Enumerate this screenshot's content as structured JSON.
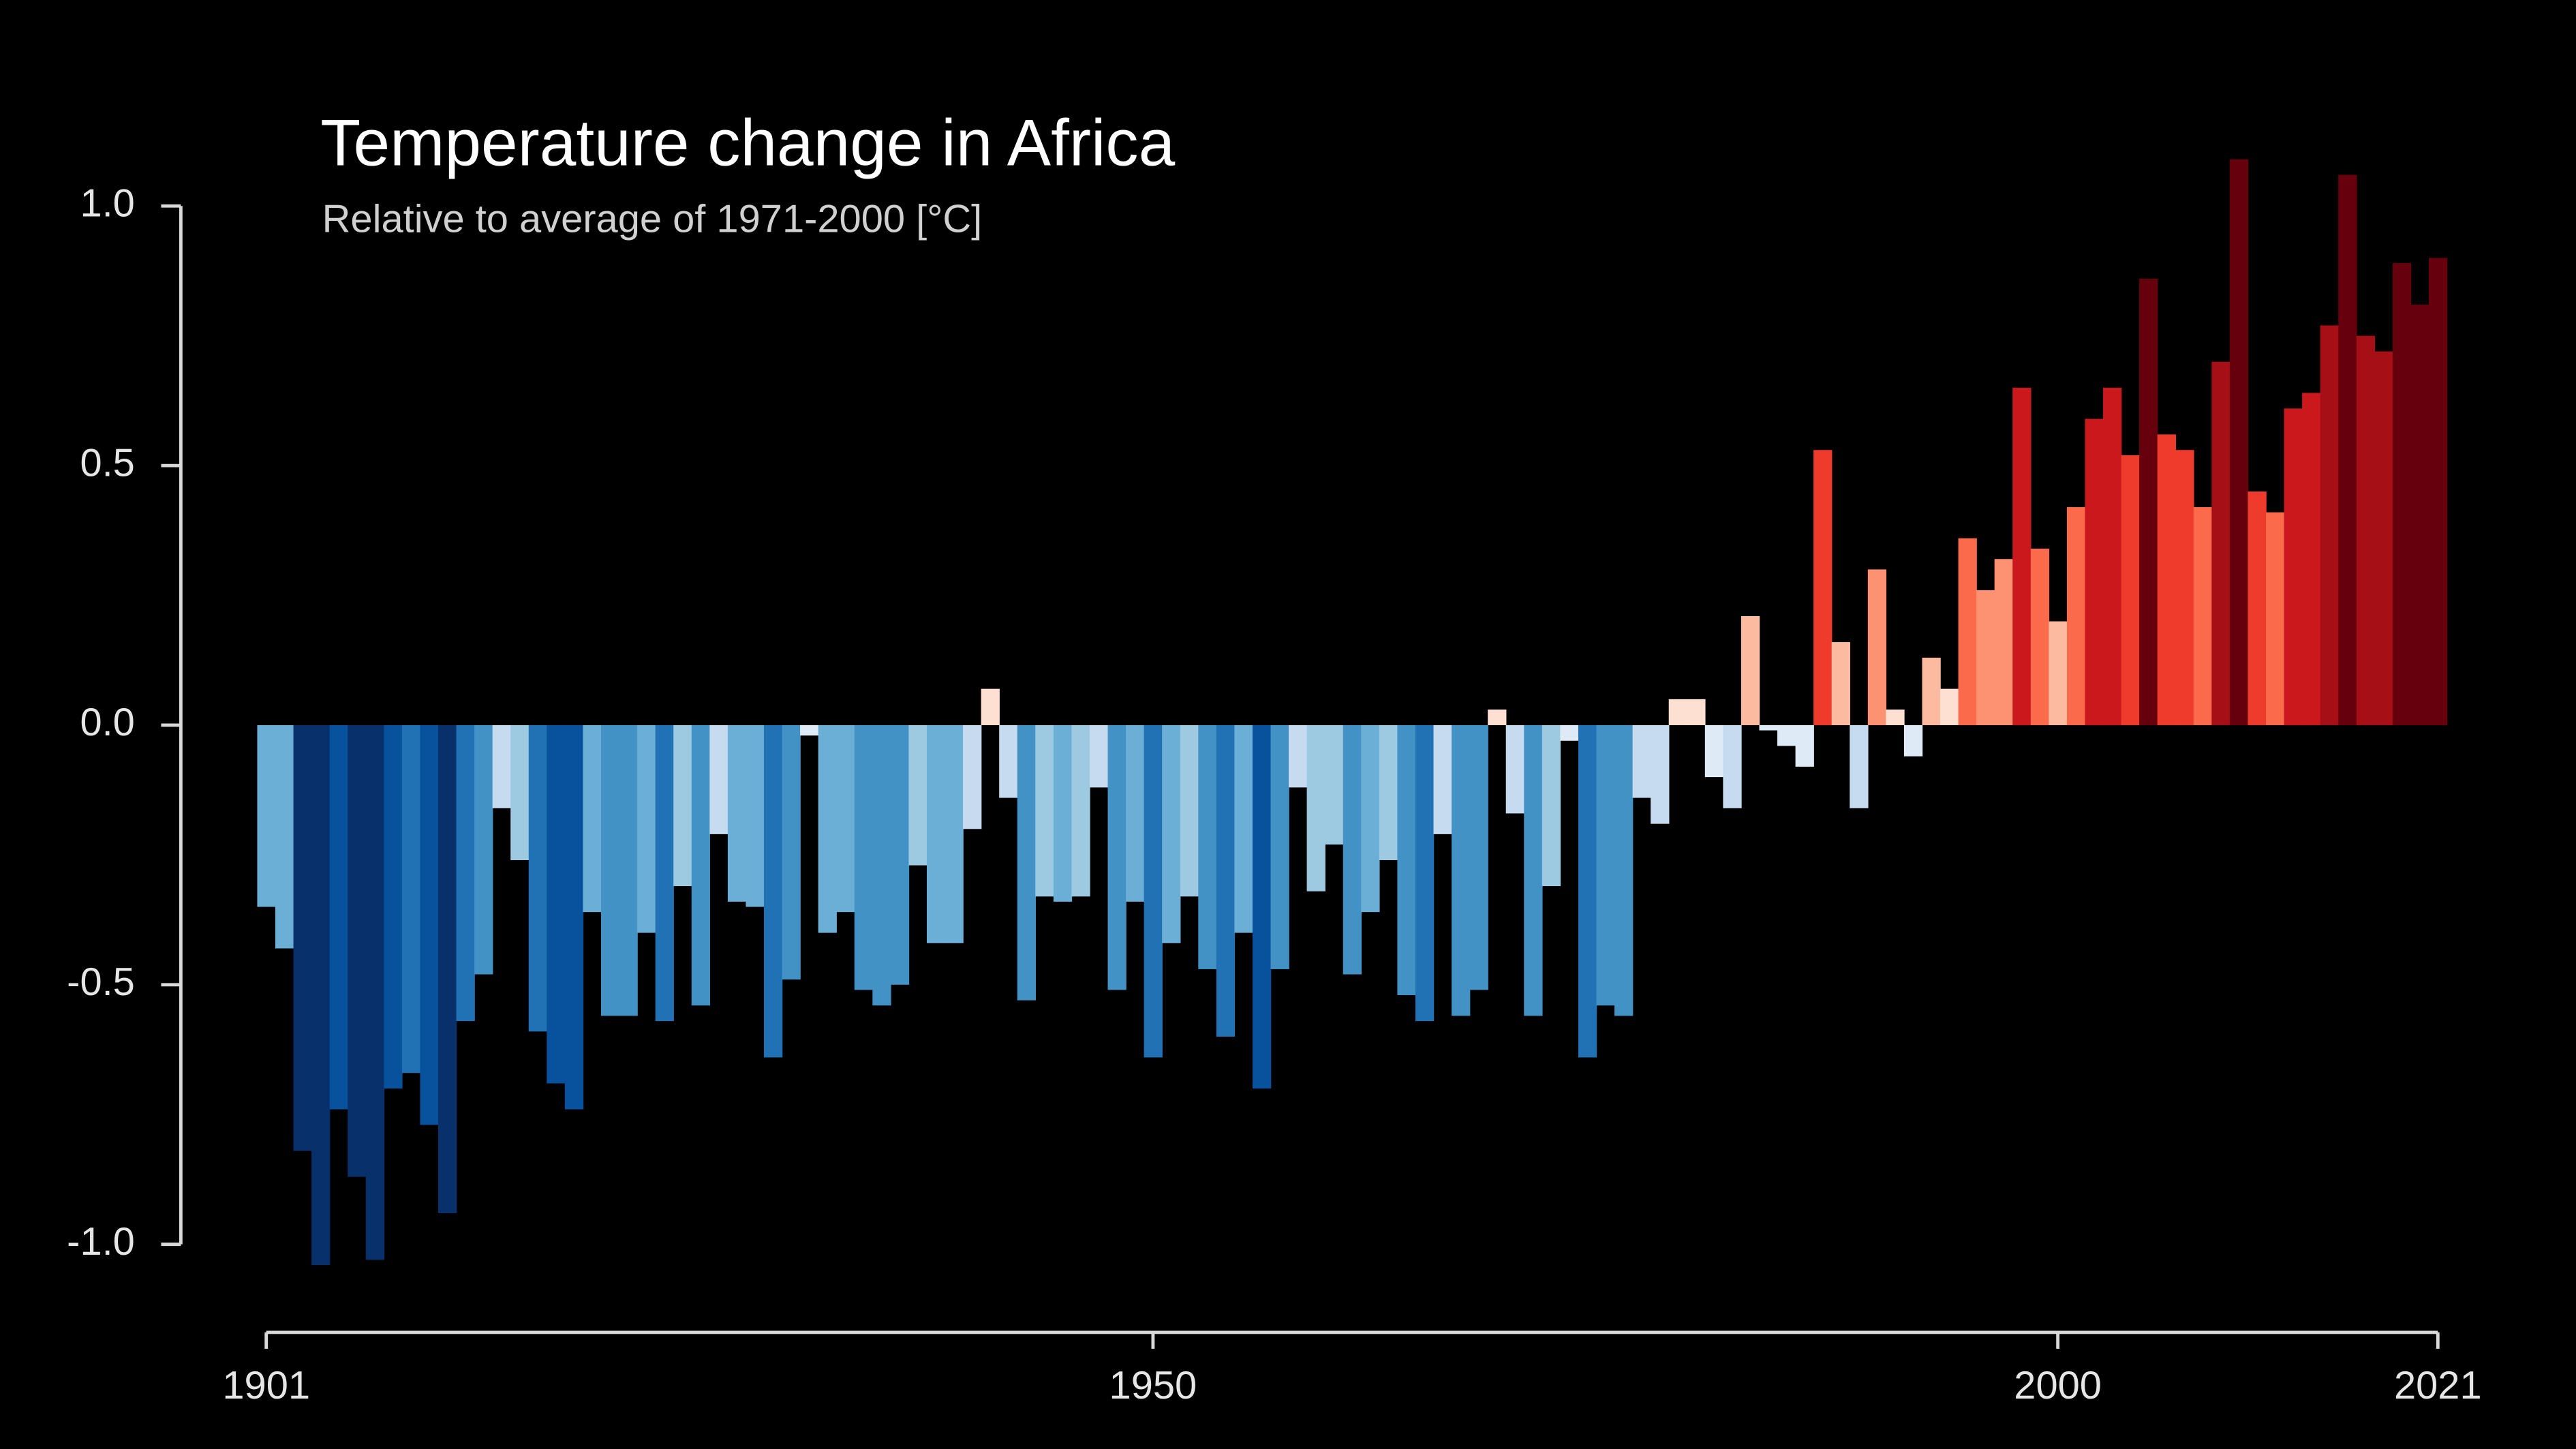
{
  "chart_data": {
    "type": "bar",
    "title": "Temperature change in Africa",
    "subtitle": "Relative to average of 1971-2000  [°C]",
    "x": [
      1901,
      1902,
      1903,
      1904,
      1905,
      1906,
      1907,
      1908,
      1909,
      1910,
      1911,
      1912,
      1913,
      1914,
      1915,
      1916,
      1917,
      1918,
      1919,
      1920,
      1921,
      1922,
      1923,
      1924,
      1925,
      1926,
      1927,
      1928,
      1929,
      1930,
      1931,
      1932,
      1933,
      1934,
      1935,
      1936,
      1937,
      1938,
      1939,
      1940,
      1941,
      1942,
      1943,
      1944,
      1945,
      1946,
      1947,
      1948,
      1949,
      1950,
      1951,
      1952,
      1953,
      1954,
      1955,
      1956,
      1957,
      1958,
      1959,
      1960,
      1961,
      1962,
      1963,
      1964,
      1965,
      1966,
      1967,
      1968,
      1969,
      1970,
      1971,
      1972,
      1973,
      1974,
      1975,
      1976,
      1977,
      1978,
      1979,
      1980,
      1981,
      1982,
      1983,
      1984,
      1985,
      1986,
      1987,
      1988,
      1989,
      1990,
      1991,
      1992,
      1993,
      1994,
      1995,
      1996,
      1997,
      1998,
      1999,
      2000,
      2001,
      2002,
      2003,
      2004,
      2005,
      2006,
      2007,
      2008,
      2009,
      2010,
      2011,
      2012,
      2013,
      2014,
      2015,
      2016,
      2017,
      2018,
      2019,
      2020,
      2021
    ],
    "values": [
      -0.35,
      -0.43,
      -0.82,
      -1.04,
      -0.74,
      -0.87,
      -1.03,
      -0.7,
      -0.67,
      -0.77,
      -0.94,
      -0.57,
      -0.48,
      -0.16,
      -0.26,
      -0.59,
      -0.69,
      -0.74,
      -0.36,
      -0.56,
      -0.56,
      -0.4,
      -0.57,
      -0.31,
      -0.54,
      -0.21,
      -0.34,
      -0.35,
      -0.64,
      -0.49,
      -0.02,
      -0.4,
      -0.36,
      -0.51,
      -0.54,
      -0.5,
      -0.27,
      -0.42,
      -0.42,
      -0.2,
      0.07,
      -0.14,
      -0.53,
      -0.33,
      -0.34,
      -0.33,
      -0.12,
      -0.51,
      -0.34,
      -0.64,
      -0.42,
      -0.33,
      -0.47,
      -0.6,
      -0.4,
      -0.7,
      -0.47,
      -0.12,
      -0.32,
      -0.23,
      -0.48,
      -0.36,
      -0.26,
      -0.52,
      -0.57,
      -0.21,
      -0.56,
      -0.51,
      0.03,
      -0.17,
      -0.56,
      -0.31,
      -0.03,
      -0.64,
      -0.54,
      -0.56,
      -0.14,
      -0.19,
      0.05,
      0.05,
      -0.1,
      -0.16,
      0.21,
      -0.01,
      -0.04,
      -0.08,
      0.53,
      0.16,
      -0.16,
      0.3,
      0.03,
      -0.06,
      0.13,
      0.07,
      0.36,
      0.26,
      0.32,
      0.65,
      0.34,
      0.2,
      0.42,
      0.59,
      0.65,
      0.52,
      0.86,
      0.56,
      0.53,
      0.42,
      0.7,
      1.09,
      0.45,
      0.41,
      0.61,
      0.64,
      0.77,
      1.06,
      0.75,
      0.72,
      0.89,
      0.81,
      0.9
    ],
    "palette": [
      "#08306b",
      "#08519c",
      "#2171b5",
      "#4292c6",
      "#6baed6",
      "#9ecae1",
      "#c6dbef",
      "#deebf7",
      "#fee0d2",
      "#fcbba1",
      "#fc9272",
      "#fb6a4a",
      "#ef3b2c",
      "#cb181d",
      "#a50f15",
      "#67000d"
    ],
    "color_limits": [
      -0.9,
      0.9
    ],
    "xlim": [
      1901,
      2021
    ],
    "xticks": [
      1901,
      1950,
      2000,
      2021
    ],
    "ylim": [
      -1.1,
      1.15
    ],
    "yticks": [
      {
        "value": -1,
        "label": "-1.0"
      },
      -0.5,
      {
        "value": 0,
        "label": "0.0"
      },
      0.5,
      {
        "value": 1,
        "label": "1.0"
      }
    ]
  }
}
